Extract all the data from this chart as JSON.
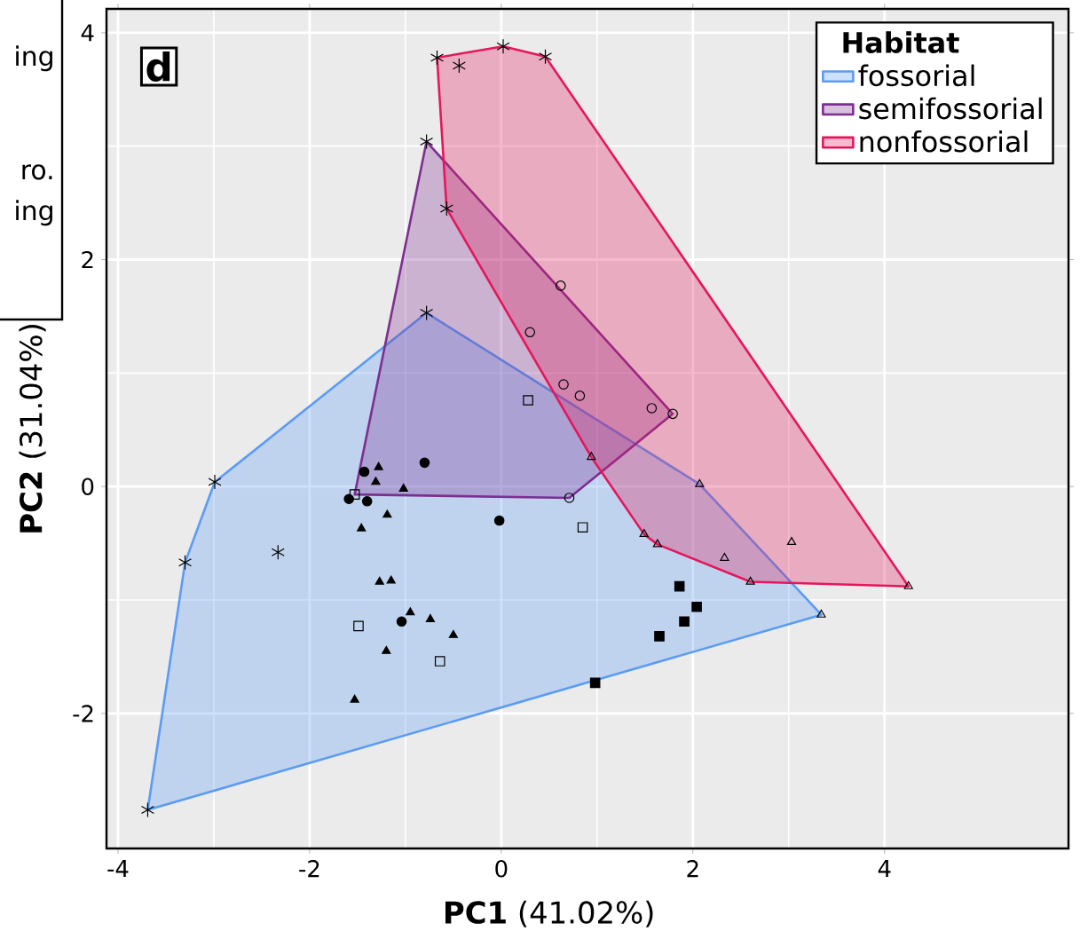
{
  "chart_data": {
    "type": "scatter",
    "xlabel": "**PC1** (41.02%)",
    "ylabel": "**PC2** (31.04%)",
    "legend_title": "Habitat",
    "legend": "top right",
    "grid": true,
    "xlim": [
      -4.12,
      5.92
    ],
    "ylim": [
      -3.19,
      4.21
    ],
    "xticks": [
      -4,
      -2,
      0,
      2,
      4
    ],
    "yticks": [
      -2,
      0,
      2,
      4
    ],
    "annotations": [
      "d",
      "ing",
      "ro.",
      "ing"
    ],
    "series": [
      {
        "type": "area",
        "name": "fossorial",
        "color": "#5b9bf5",
        "x": [
          -0.78,
          2.07,
          3.34,
          -3.69,
          -3.3,
          -2.99
        ],
        "values": [
          1.53,
          0.02,
          -1.13,
          -2.85,
          -0.67,
          0.04
        ]
      },
      {
        "type": "area",
        "name": "semifossorial",
        "color": "#7d2e91",
        "x": [
          -0.78,
          1.79,
          0.71,
          -1.53
        ],
        "values": [
          3.04,
          0.64,
          -0.1,
          -0.07
        ]
      },
      {
        "type": "area",
        "name": "nonfossorial",
        "color": "#e5175b",
        "x": [
          -0.67,
          0.02,
          0.46,
          4.25,
          2.6,
          1.63,
          1.49,
          0.94,
          -0.57
        ],
        "values": [
          3.78,
          3.88,
          3.79,
          -0.88,
          -0.84,
          -0.51,
          -0.42,
          0.26,
          2.45
        ]
      },
      {
        "type": "scatter",
        "marker": "cross",
        "color": "#000000",
        "x": [
          -0.67,
          -0.44,
          0.02,
          0.46,
          -0.78,
          -0.57,
          -0.78,
          -2.99,
          -3.3,
          -2.33,
          -3.69
        ],
        "values": [
          3.78,
          3.71,
          3.88,
          3.79,
          3.04,
          2.45,
          1.53,
          0.04,
          -0.67,
          -0.58,
          -2.85
        ]
      },
      {
        "type": "scatter",
        "marker": "circle-open",
        "color": "#000000",
        "x": [
          0.62,
          0.3,
          0.65,
          0.82,
          1.57,
          1.79,
          0.71
        ],
        "values": [
          1.77,
          1.36,
          0.9,
          0.8,
          0.69,
          0.64,
          -0.1
        ]
      },
      {
        "type": "scatter",
        "marker": "square-open",
        "color": "#000000",
        "x": [
          0.28,
          -1.53,
          -1.49,
          -0.64,
          0.85
        ],
        "values": [
          0.76,
          -0.07,
          -1.23,
          -1.54,
          -0.36
        ]
      },
      {
        "type": "scatter",
        "marker": "circle",
        "color": "#000000",
        "x": [
          -1.43,
          -0.8,
          -1.59,
          -1.4,
          -0.02,
          -1.04
        ],
        "values": [
          0.13,
          0.21,
          -0.11,
          -0.13,
          -0.3,
          -1.19
        ]
      },
      {
        "type": "scatter",
        "marker": "triangle",
        "color": "#000000",
        "x": [
          -1.28,
          -1.31,
          -1.02,
          -1.19,
          -1.46,
          -1.27,
          -1.15,
          -0.95,
          -0.74,
          -0.5,
          -1.2,
          -1.53
        ],
        "values": [
          0.17,
          0.04,
          -0.02,
          -0.25,
          -0.37,
          -0.84,
          -0.83,
          -1.11,
          -1.17,
          -1.31,
          -1.45,
          -1.88
        ]
      },
      {
        "type": "scatter",
        "marker": "square",
        "color": "#000000",
        "x": [
          1.86,
          2.04,
          1.91,
          1.65,
          0.98
        ],
        "values": [
          -0.88,
          -1.06,
          -1.19,
          -1.32,
          -1.73
        ]
      },
      {
        "type": "scatter",
        "marker": "triangle-open",
        "color": "#000000",
        "x": [
          0.94,
          2.07,
          1.49,
          1.63,
          2.33,
          3.03,
          2.6,
          4.25,
          3.34
        ],
        "values": [
          0.26,
          0.02,
          -0.42,
          -0.51,
          -0.63,
          -0.49,
          -0.84,
          -0.88,
          -1.13
        ]
      }
    ]
  }
}
